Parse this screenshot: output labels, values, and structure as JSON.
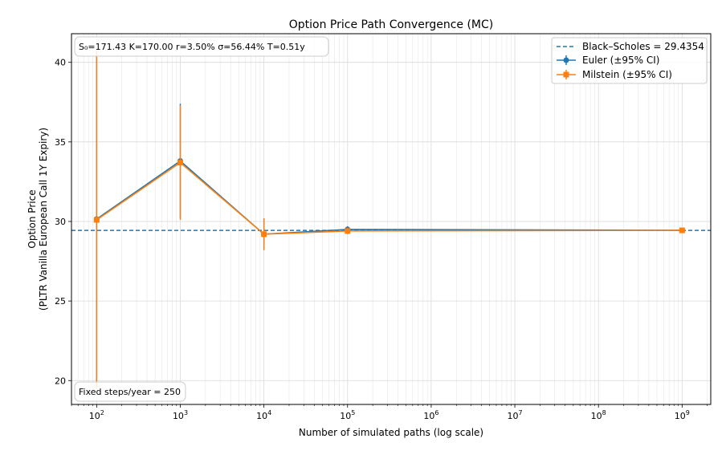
{
  "chart_data": {
    "type": "line",
    "title": "Option Price Path Convergence (MC)",
    "xlabel": "Number of simulated paths (log scale)",
    "ylabel_line1": "Option Price",
    "ylabel_line2": "(PLTR Vanilla European Call 1Y Expiry)",
    "xscale": "log",
    "xlim": [
      50,
      2200000000
    ],
    "ylim": [
      18.5,
      41.8
    ],
    "x_ticks": [
      {
        "value": 100,
        "base": "10",
        "exp": "2"
      },
      {
        "value": 1000,
        "base": "10",
        "exp": "3"
      },
      {
        "value": 10000,
        "base": "10",
        "exp": "4"
      },
      {
        "value": 100000,
        "base": "10",
        "exp": "5"
      },
      {
        "value": 1000000,
        "base": "10",
        "exp": "6"
      },
      {
        "value": 10000000,
        "base": "10",
        "exp": "7"
      },
      {
        "value": 100000000,
        "base": "10",
        "exp": "8"
      },
      {
        "value": 1000000000,
        "base": "10",
        "exp": "9"
      }
    ],
    "y_ticks": [
      {
        "value": 20,
        "label": "20"
      },
      {
        "value": 25,
        "label": "25"
      },
      {
        "value": 30,
        "label": "30"
      },
      {
        "value": 35,
        "label": "35"
      },
      {
        "value": 40,
        "label": "40"
      }
    ],
    "grid": true,
    "reference_line": {
      "value": 29.4354,
      "label": "Black–Scholes = 29.4354",
      "color": "#1f77b4"
    },
    "series": [
      {
        "name": "Euler (±95% CI)",
        "color": "#1f77b4",
        "marker": "circle",
        "x": [
          100,
          1000,
          10000,
          100000,
          1000000000
        ],
        "y": [
          30.15,
          33.8,
          29.2,
          29.5,
          29.44
        ],
        "ci": [
          10.6,
          3.6,
          1.0,
          0.2,
          0.01
        ]
      },
      {
        "name": "Milstein (±95% CI)",
        "color": "#ff7f0e",
        "marker": "square",
        "x": [
          100,
          1000,
          10000,
          100000,
          1000000000
        ],
        "y": [
          30.1,
          33.7,
          29.2,
          29.4,
          29.44
        ],
        "ci": [
          10.6,
          3.6,
          1.0,
          0.2,
          0.01
        ]
      }
    ],
    "legend_position": "upper-right",
    "params_box": "S₀=171.43   K=170.00   r=3.50%   σ=56.44%   T=0.51y",
    "steps_box": "Fixed steps/year = 250"
  }
}
